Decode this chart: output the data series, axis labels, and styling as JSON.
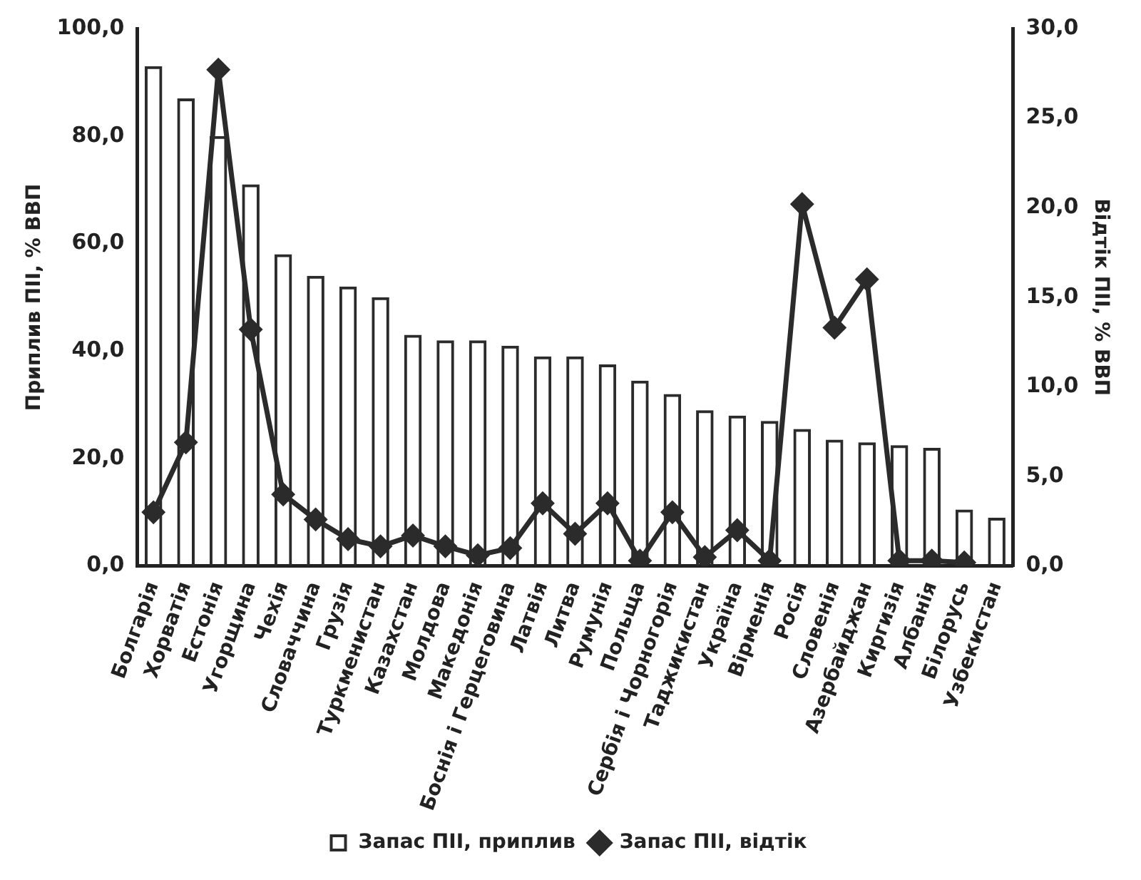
{
  "chart_data": {
    "type": "bar",
    "categories": [
      "Болгарія",
      "Хорватія",
      "Естонія",
      "Угорщина",
      "Чехія",
      "Словаччина",
      "Грузія",
      "Туркменистан",
      "Казахстан",
      "Молдова",
      "Македонія",
      "Боснія і Герцеговина",
      "Латвія",
      "Литва",
      "Румунія",
      "Польща",
      "Сербія і Чорногорія",
      "Таджикистан",
      "Україна",
      "Вірменія",
      "Росія",
      "Словенія",
      "Азербайджан",
      "Киргизія",
      "Албанія",
      "Білорусь",
      "Узбекистан"
    ],
    "series": [
      {
        "name": "Запас ПІІ, приплив",
        "color": "#2b2b2b",
        "values": [
          93,
          87,
          80,
          71,
          58,
          54,
          52,
          50,
          43,
          42,
          42,
          41,
          39,
          39,
          37.5,
          34.5,
          32,
          29,
          28,
          27,
          25.5,
          23.5,
          23,
          22.5,
          22,
          10.5,
          9
        ]
      },
      {
        "name": "Запас ПІІ, відтік",
        "type": "line",
        "axis": "y2",
        "color": "#2b2b2b",
        "marker": "diamond",
        "values": [
          3.0,
          6.9,
          27.7,
          13.2,
          4.0,
          2.6,
          1.5,
          1.1,
          1.7,
          1.1,
          0.6,
          1.0,
          3.5,
          1.8,
          3.5,
          0.3,
          3.0,
          0.5,
          2.0,
          0.3,
          20.2,
          13.3,
          16.0,
          0.3,
          0.3,
          0.2,
          null
        ]
      }
    ],
    "ylabel": "Приплив ПІІ, % ВВП",
    "y2label": "Відтік ПІІ, % ВВП",
    "ylim": [
      0,
      100
    ],
    "yticks": [
      {
        "value": 0,
        "label": "0,0"
      },
      {
        "value": 20,
        "label": "20,0"
      },
      {
        "value": 40,
        "label": "40,0"
      },
      {
        "value": 60,
        "label": "60,0"
      },
      {
        "value": 80,
        "label": "80,0"
      },
      {
        "value": 100,
        "label": "100,0"
      }
    ],
    "y2lim": [
      0,
      30
    ],
    "y2ticks": [
      {
        "value": 0,
        "label": "0,0"
      },
      {
        "value": 5,
        "label": "5,0"
      },
      {
        "value": 10,
        "label": "10,0"
      },
      {
        "value": 15,
        "label": "15,0"
      },
      {
        "value": 20,
        "label": "20,0"
      },
      {
        "value": 25,
        "label": "25,0"
      },
      {
        "value": 30,
        "label": "30,0"
      }
    ],
    "grid": false,
    "legend": "bottom"
  }
}
